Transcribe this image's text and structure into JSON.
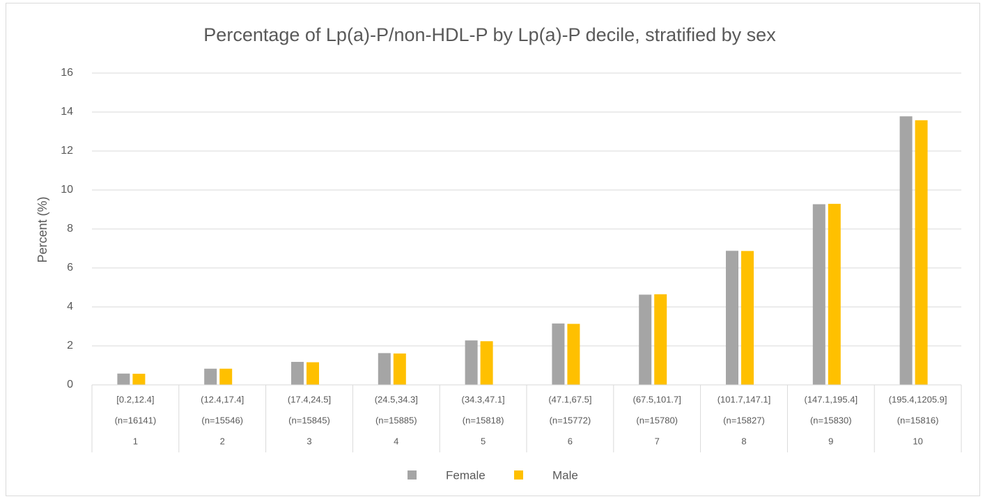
{
  "chart_data": {
    "type": "bar",
    "title": "Percentage of Lp(a)-P/non-HDL-P by Lp(a)-P decile, stratified by sex",
    "y_label": "Percent (%)",
    "categories": [
      "1",
      "2",
      "3",
      "4",
      "5",
      "6",
      "7",
      "8",
      "9",
      "10"
    ],
    "category_ranges": [
      "[0.2,12.4]",
      "(12.4,17.4]",
      "(17.4,24.5]",
      "(24.5,34.3]",
      "(34.3,47.1]",
      "(47.1,67.5]",
      "(67.5,101.7]",
      "(101.7,147.1]",
      "(147.1,195.4]",
      "(195.4,1205.9]"
    ],
    "category_counts": [
      "(n=16141)",
      "(n=15546)",
      "(n=15845)",
      "(n=15885)",
      "(n=15818)",
      "(n=15772)",
      "(n=15780)",
      "(n=15827)",
      "(n=15830)",
      "(n=15816)"
    ],
    "series": [
      {
        "name": "Female",
        "color": "#a5a5a5",
        "values": [
          0.58,
          0.83,
          1.18,
          1.63,
          2.28,
          3.15,
          4.63,
          6.88,
          9.27,
          13.78
        ]
      },
      {
        "name": "Male",
        "color": "#ffc000",
        "values": [
          0.57,
          0.83,
          1.16,
          1.61,
          2.24,
          3.13,
          4.65,
          6.87,
          9.29,
          13.58
        ]
      }
    ],
    "ylim": [
      0,
      16
    ],
    "yticks": [
      0,
      2,
      4,
      6,
      8,
      10,
      12,
      14,
      16
    ],
    "grid": true,
    "legend": "bottom"
  }
}
